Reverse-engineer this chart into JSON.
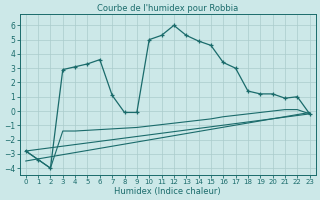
{
  "title": "Courbe de l'humidex pour Robbia",
  "xlabel": "Humidex (Indice chaleur)",
  "bg_color": "#cce8e8",
  "line_color": "#1a6b6b",
  "grid_color": "#aacccc",
  "xlim": [
    -0.5,
    23.5
  ],
  "ylim": [
    -4.5,
    6.8
  ],
  "yticks": [
    -4,
    -3,
    -2,
    -1,
    0,
    1,
    2,
    3,
    4,
    5,
    6
  ],
  "xticks": [
    0,
    1,
    2,
    3,
    4,
    5,
    6,
    7,
    8,
    9,
    10,
    11,
    12,
    13,
    14,
    15,
    16,
    17,
    18,
    19,
    20,
    21,
    22,
    23
  ],
  "series1_x": [
    0,
    1,
    2,
    3,
    4,
    5,
    6,
    7,
    8,
    9,
    10,
    11,
    12,
    13,
    14,
    15,
    16,
    17,
    18,
    19,
    20,
    21,
    22,
    23
  ],
  "series1_y": [
    -2.8,
    -3.4,
    -4.0,
    2.9,
    3.1,
    3.3,
    3.6,
    1.1,
    -0.1,
    -0.1,
    5.0,
    5.3,
    6.0,
    5.3,
    4.9,
    4.6,
    3.4,
    3.0,
    1.4,
    1.2,
    1.2,
    0.9,
    1.0,
    -0.2
  ],
  "series2_x": [
    0,
    1,
    2,
    3,
    4,
    5,
    6,
    7,
    8,
    9,
    10,
    11,
    12,
    13,
    14,
    15,
    16,
    17,
    18,
    19,
    20,
    21,
    22,
    23
  ],
  "series2_y": [
    -2.8,
    -3.4,
    -4.0,
    -1.4,
    -1.4,
    -1.35,
    -1.3,
    -1.25,
    -1.2,
    -1.15,
    -1.05,
    -0.95,
    -0.85,
    -0.75,
    -0.65,
    -0.55,
    -0.4,
    -0.3,
    -0.2,
    -0.1,
    0.0,
    0.1,
    0.1,
    -0.2
  ],
  "line2_x": [
    0,
    23
  ],
  "line2_y": [
    -2.8,
    -0.2
  ],
  "line3_x": [
    0,
    23
  ],
  "line3_y": [
    -3.5,
    -0.1
  ]
}
